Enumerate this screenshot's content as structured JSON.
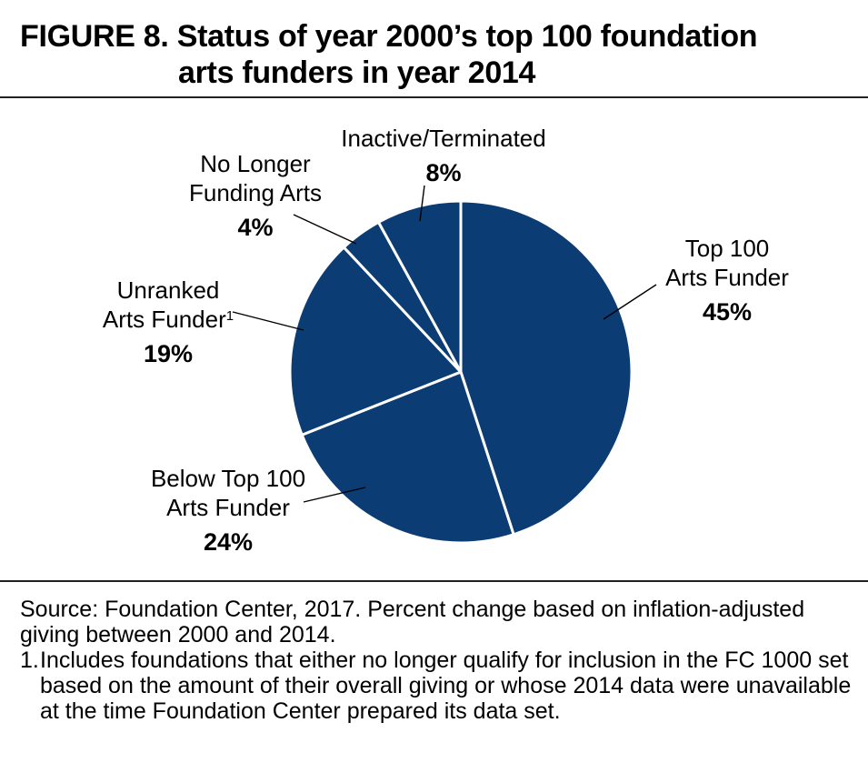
{
  "header": {
    "title_line1": "FIGURE 8. Status of year 2000’s top 100 foundation",
    "title_line2": "arts funders in year 2014"
  },
  "chart_data": {
    "type": "pie",
    "start_angle_deg": 0,
    "direction": "clockwise",
    "slice_color": "#0b3c73",
    "slices": [
      {
        "label": "Top 100 Arts Funder",
        "value": 45,
        "display": "45%",
        "lines": [
          "Top 100",
          "Arts Funder"
        ],
        "sup": ""
      },
      {
        "label": "Below Top 100 Arts Funder",
        "value": 24,
        "display": "24%",
        "lines": [
          "Below Top 100",
          "Arts Funder"
        ],
        "sup": ""
      },
      {
        "label": "Unranked Arts Funder",
        "value": 19,
        "display": "19%",
        "lines": [
          "Unranked",
          "Arts Funder"
        ],
        "sup": "1"
      },
      {
        "label": "No Longer Funding Arts",
        "value": 4,
        "display": "4%",
        "lines": [
          "No Longer",
          "Funding Arts"
        ],
        "sup": ""
      },
      {
        "label": "Inactive/Terminated",
        "value": 8,
        "display": "8%",
        "lines": [
          "Inactive/Terminated"
        ],
        "sup": ""
      }
    ]
  },
  "notes": {
    "source": "Source: Foundation Center, 2017. Percent change based on inflation-adjusted giving between 2000 and 2014.",
    "footnote_number": "1.",
    "footnote_text": "Includes foundations that either no longer qualify for inclusion in the FC 1000 set based on the amount of their overall giving or whose 2014 data were unavailable at the time Foundation Center prepared its data set."
  }
}
